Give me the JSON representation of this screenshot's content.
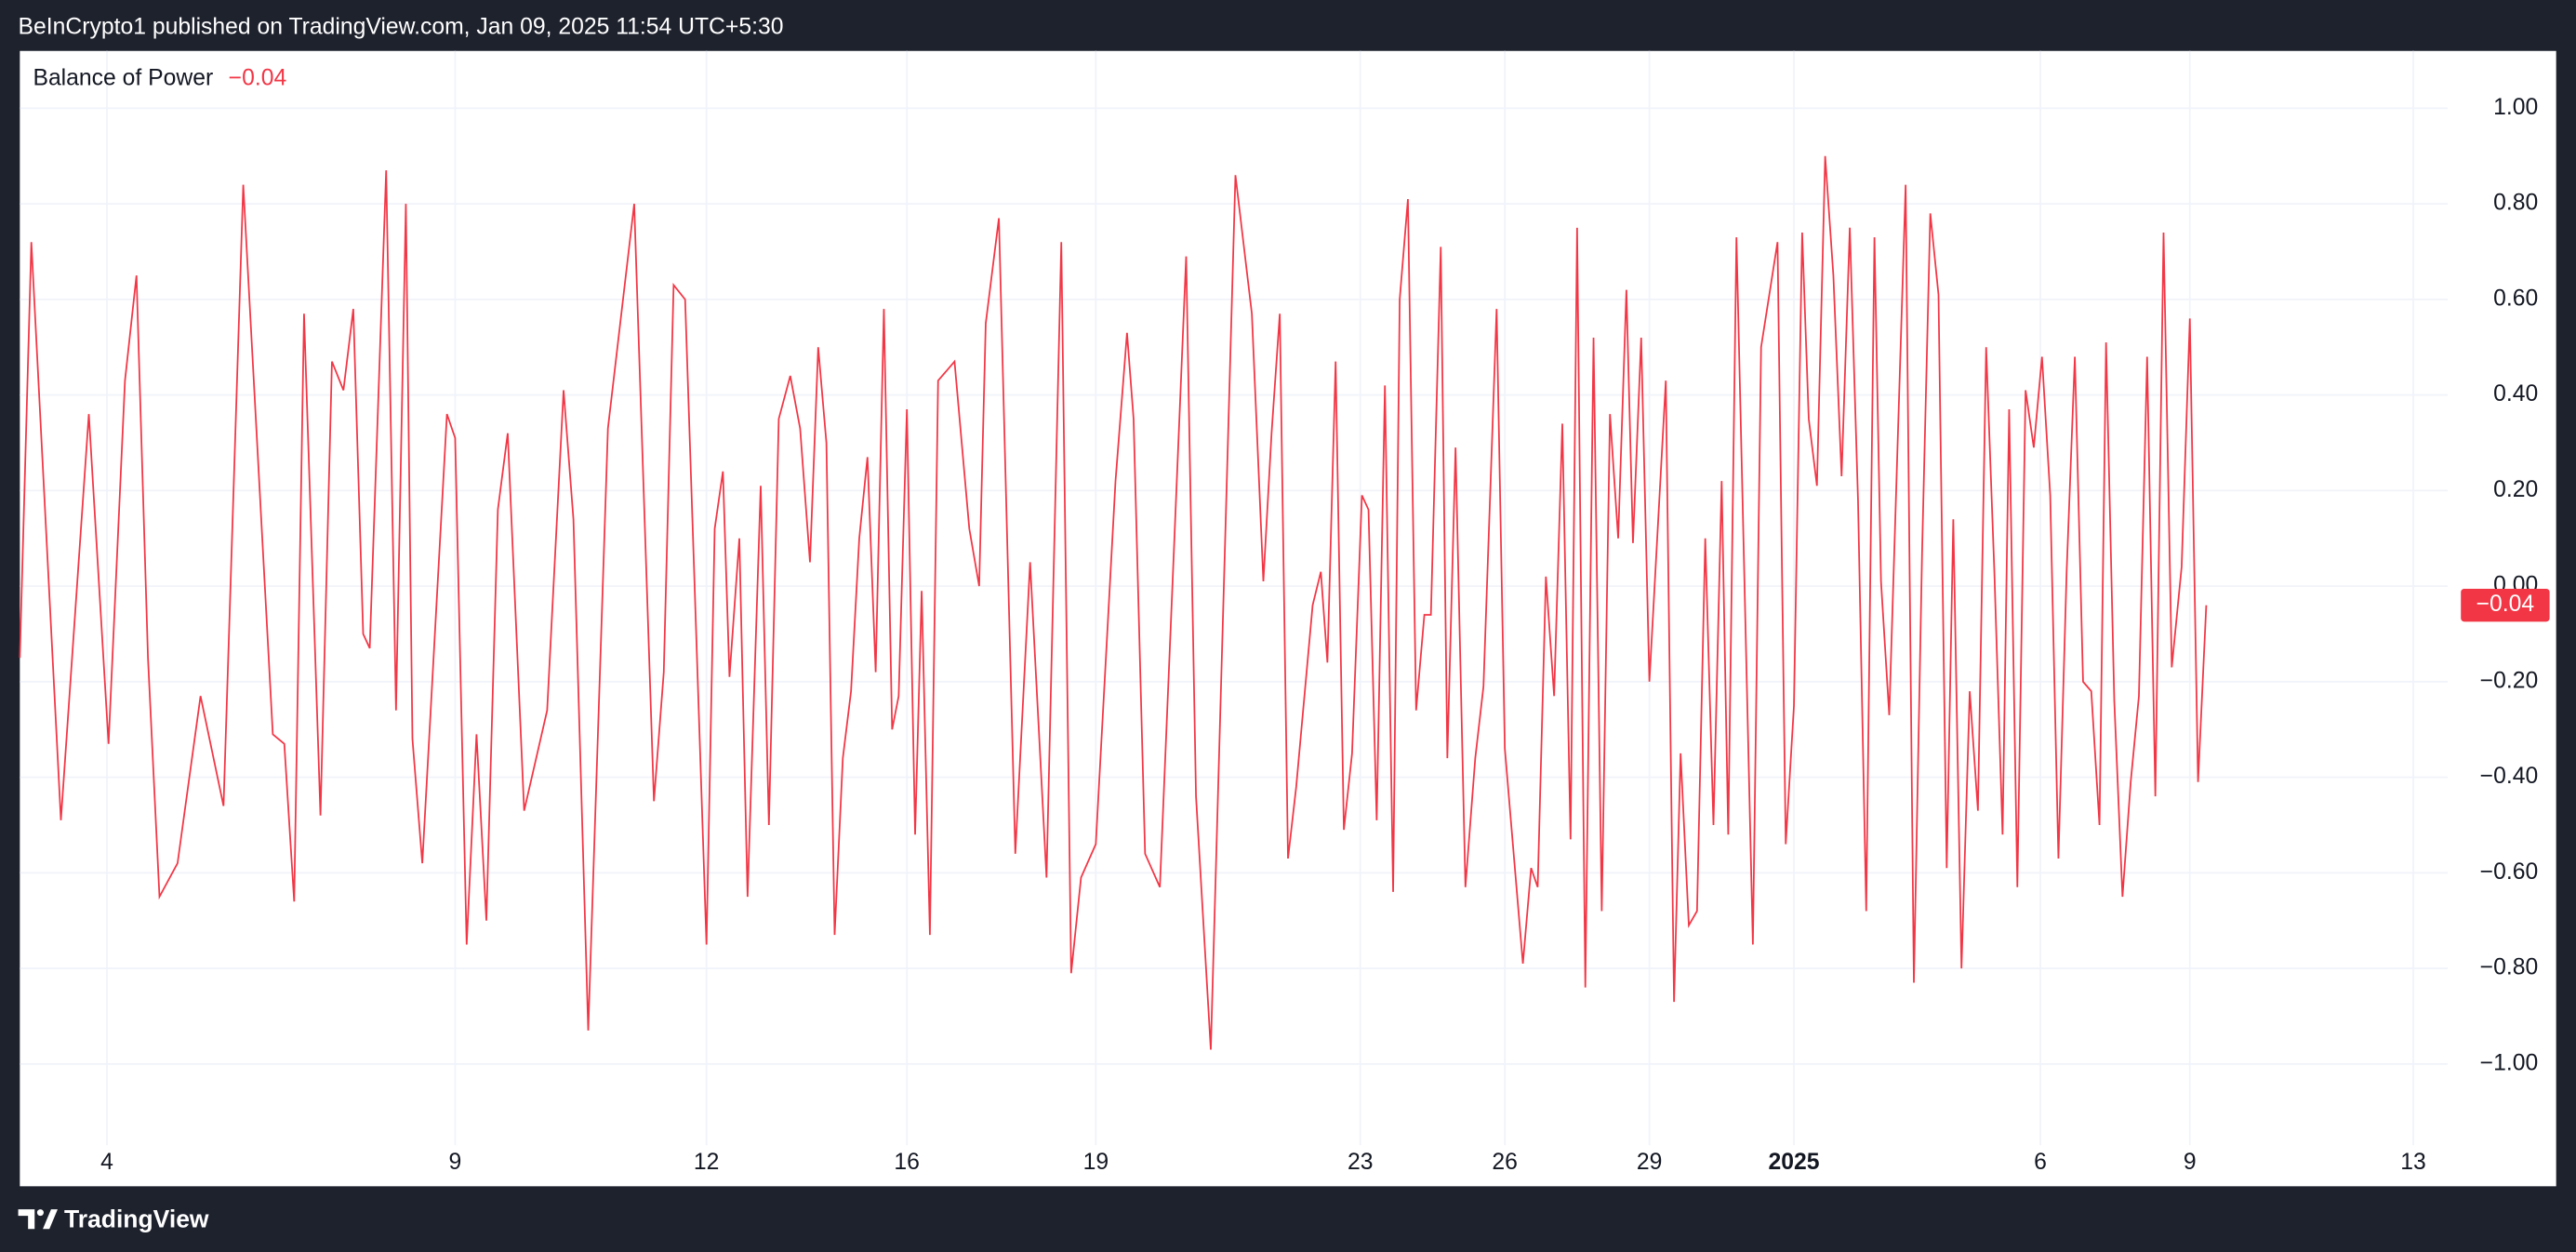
{
  "header": {
    "text": "BeInCrypto1 published on TradingView.com, Jan 09, 2025 11:54 UTC+5:30"
  },
  "footer": {
    "brand": "TradingView"
  },
  "chart_data": {
    "type": "line",
    "title": "Balance of Power",
    "last_value_label": "−0.04",
    "grid": true,
    "series": [
      {
        "name": "Balance of Power",
        "color": "#f23645",
        "x": [
          12,
          19,
          37,
          54,
          66,
          76,
          83,
          90,
          97,
          108,
          122,
          136,
          148,
          166,
          173,
          179,
          185,
          195,
          202,
          209,
          215,
          221,
          225,
          235,
          241,
          247,
          251,
          257,
          272,
          277,
          284,
          290,
          296,
          303,
          309,
          319,
          333,
          343,
          349,
          358,
          370,
          386,
          398,
          404,
          410,
          417,
          430,
          435,
          440,
          444,
          450,
          455,
          463,
          468,
          474,
          481,
          487,
          493,
          498,
          503,
          508,
          513,
          518,
          523,
          528,
          533,
          538,
          543,
          547,
          552,
          557,
          561,
          566,
          571,
          581,
          590,
          596,
          600,
          608,
          618,
          627,
          637,
          646,
          652,
          658,
          667,
          679,
          686,
          690,
          697,
          706,
          722,
          728,
          737,
          752,
          762,
          769,
          774,
          779,
          784,
          789,
          794,
          799,
          804,
          808,
          813,
          818,
          823,
          829,
          833,
          838,
          843,
          848,
          852,
          857,
          862,
          867,
          871,
          877,
          881,
          886,
          892,
          898,
          903,
          911,
          916,
          927,
          932,
          936,
          941,
          946,
          951,
          956,
          960,
          965,
          970,
          975,
          980,
          985,
          990,
          994,
          999,
          1004,
          1014,
          1019,
          1023,
          1028,
          1033,
          1038,
          1043,
          1048,
          1052,
          1057,
          1067,
          1072,
          1082,
          1087,
          1092,
          1097,
          1101,
          1106,
          1111,
          1116,
          1121,
          1126,
          1131,
          1136,
          1141,
          1145,
          1150,
          1160,
          1165,
          1170,
          1175,
          1180,
          1185,
          1189,
          1194,
          1199,
          1204,
          1209,
          1214,
          1219,
          1223,
          1228,
          1233,
          1238,
          1243,
          1248,
          1253,
          1258,
          1263,
          1268,
          1273,
          1278,
          1282,
          1287,
          1292,
          1297,
          1302,
          1307,
          1312,
          1317,
          1322,
          1328,
          1333,
          1338,
          1343
        ],
        "values": [
          -0.15,
          0.72,
          -0.49,
          0.36,
          -0.33,
          0.43,
          0.65,
          -0.15,
          -0.65,
          -0.58,
          -0.23,
          -0.46,
          0.84,
          -0.31,
          -0.33,
          -0.66,
          0.57,
          -0.48,
          0.47,
          0.41,
          0.58,
          -0.1,
          -0.13,
          0.87,
          -0.26,
          0.8,
          -0.32,
          -0.58,
          0.36,
          0.31,
          -0.75,
          -0.31,
          -0.7,
          0.16,
          0.32,
          -0.47,
          -0.26,
          0.41,
          0.14,
          -0.93,
          0.33,
          0.8,
          -0.45,
          -0.18,
          0.63,
          0.6,
          -0.75,
          0.12,
          0.24,
          -0.19,
          0.1,
          -0.65,
          0.21,
          -0.5,
          0.35,
          0.44,
          0.33,
          0.05,
          0.5,
          0.3,
          -0.73,
          -0.36,
          -0.22,
          0.1,
          0.27,
          -0.18,
          0.58,
          -0.3,
          -0.23,
          0.37,
          -0.52,
          -0.01,
          -0.73,
          0.43,
          0.47,
          0.12,
          0.0,
          0.55,
          0.77,
          -0.56,
          0.05,
          -0.61,
          0.72,
          -0.81,
          -0.61,
          -0.54,
          0.22,
          0.53,
          0.35,
          -0.56,
          -0.63,
          0.69,
          -0.44,
          -0.97,
          0.86,
          0.57,
          0.01,
          0.32,
          0.57,
          -0.57,
          -0.42,
          -0.23,
          -0.04,
          0.03,
          -0.16,
          0.47,
          -0.51,
          -0.35,
          0.19,
          0.16,
          -0.49,
          0.42,
          -0.64,
          0.6,
          0.81,
          -0.26,
          -0.06,
          -0.06,
          0.71,
          -0.36,
          0.29,
          -0.63,
          -0.36,
          -0.21,
          0.58,
          -0.34,
          -0.79,
          -0.59,
          -0.63,
          0.02,
          -0.23,
          0.34,
          -0.53,
          0.75,
          -0.84,
          0.52,
          -0.68,
          0.36,
          0.1,
          0.62,
          0.09,
          0.52,
          -0.2,
          0.43,
          -0.87,
          -0.35,
          -0.71,
          -0.68,
          0.1,
          -0.5,
          0.22,
          -0.52,
          0.73,
          -0.75,
          0.5,
          0.72,
          -0.54,
          -0.25,
          0.74,
          0.35,
          0.21,
          0.9,
          0.65,
          0.23,
          0.75,
          0.18,
          -0.68,
          0.73,
          0.01,
          -0.27,
          0.84,
          -0.83,
          0.07,
          0.78,
          0.61,
          -0.59,
          0.14,
          -0.8,
          -0.22,
          -0.47,
          0.5,
          0.03,
          -0.52,
          0.37,
          -0.63,
          0.41,
          0.29,
          0.48,
          0.19,
          -0.57,
          0.03,
          0.48,
          -0.2,
          -0.22,
          -0.5,
          0.51,
          -0.24,
          -0.65,
          -0.41,
          -0.23,
          0.48,
          -0.44,
          0.74,
          -0.17,
          0.04,
          0.56,
          -0.41,
          -0.04
        ]
      }
    ],
    "xlim": [
      12,
      1490
    ],
    "xticks": [
      {
        "value": 65,
        "label": "4"
      },
      {
        "value": 277,
        "label": "9"
      },
      {
        "value": 430,
        "label": "12"
      },
      {
        "value": 552,
        "label": "16"
      },
      {
        "value": 667,
        "label": "19"
      },
      {
        "value": 828,
        "label": "23"
      },
      {
        "value": 916,
        "label": "26"
      },
      {
        "value": 1004,
        "label": "29"
      },
      {
        "value": 1092,
        "label": "2025"
      },
      {
        "value": 1242,
        "label": "6"
      },
      {
        "value": 1333,
        "label": "9"
      },
      {
        "value": 1469,
        "label": "13"
      }
    ],
    "ylim": [
      -1.17,
      1.12
    ],
    "yticks": [
      {
        "value": -1,
        "label": "−1.00"
      },
      {
        "value": -0.8,
        "label": "−0.80"
      },
      {
        "value": -0.6,
        "label": "−0.60"
      },
      {
        "value": -0.4,
        "label": "−0.40"
      },
      {
        "value": -0.2,
        "label": "−0.20"
      },
      {
        "value": 0,
        "label": "0.00"
      },
      {
        "value": 0.2,
        "label": "0.20"
      },
      {
        "value": 0.4,
        "label": "0.40"
      },
      {
        "value": 0.6,
        "label": "0.60"
      },
      {
        "value": 0.8,
        "label": "0.80"
      },
      {
        "value": 1,
        "label": "1.00"
      }
    ]
  }
}
